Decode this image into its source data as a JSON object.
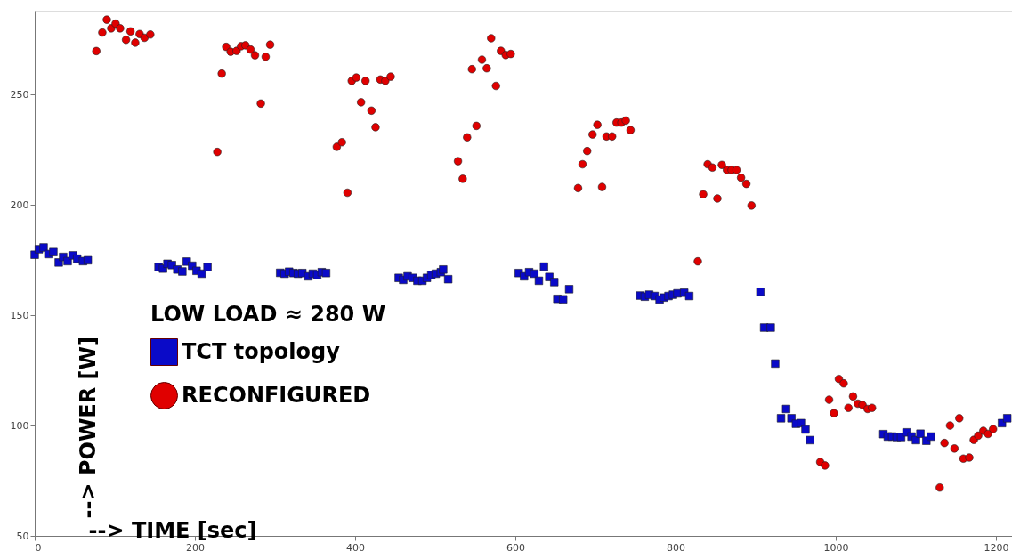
{
  "chart_data": {
    "type": "scatter",
    "xlabel": "--> TIME [sec]",
    "ylabel": "--> POWER [W]",
    "legend_title": "LOW LOAD ≈ 280 W",
    "xlim": [
      0,
      1220
    ],
    "ylim": [
      50,
      288
    ],
    "xticks": [
      0,
      200,
      400,
      600,
      800,
      1000,
      1200
    ],
    "yticks": [
      50,
      100,
      150,
      200,
      250
    ],
    "grid": false,
    "legend": "left",
    "series": [
      {
        "name": "TCT topology",
        "color": "#0a0ac8",
        "marker": "square",
        "x": [
          0,
          5.2,
          11.1,
          17.0,
          23.3,
          30.0,
          35.5,
          41.1,
          47.4,
          53.0,
          60.3,
          66.3,
          154.6,
          160.2,
          165.7,
          171.3,
          178.0,
          184.3,
          189.8,
          196.5,
          202.0,
          208.4,
          215.7,
          306.4,
          312.0,
          317.5,
          323.1,
          328.6,
          334.1,
          341.6,
          347.2,
          352.7,
          358.3,
          363.8,
          454.4,
          460.0,
          465.5,
          471.8,
          477.7,
          484.0,
          489.6,
          495.1,
          500.7,
          507.0,
          509.9,
          516.2,
          604.2,
          610.9,
          617.2,
          623.6,
          629.4,
          635.8,
          642.4,
          648.6,
          652.4,
          659.7,
          667.2,
          756.0,
          761.6,
          767.1,
          773.8,
          780.1,
          785.7,
          791.2,
          796.8,
          802.3,
          810.8,
          817.1,
          905.9,
          910.6,
          918.8,
          924.4,
          931.7,
          938.1,
          944.7,
          950.3,
          956.6,
          962.2,
          968.0,
          1059.4,
          1065.0,
          1070.5,
          1076.1,
          1081.6,
          1088.3,
          1094.6,
          1100.1,
          1105.7,
          1113.1,
          1118.7,
          1207.5,
          1214.1
        ],
        "values": [
          177.4,
          179.9,
          180.7,
          177.7,
          178.6,
          173.9,
          176.4,
          174.5,
          177.1,
          175.6,
          174.5,
          174.9,
          171.8,
          171.1,
          173.3,
          172.7,
          170.7,
          169.8,
          174.3,
          172.4,
          170.1,
          168.8,
          171.8,
          169.2,
          168.8,
          169.7,
          169.1,
          168.8,
          169.1,
          167.6,
          168.8,
          168.2,
          169.5,
          169.1,
          166.9,
          166.0,
          167.6,
          166.9,
          165.6,
          165.6,
          166.9,
          168.2,
          168.8,
          169.5,
          170.7,
          166.3,
          169.1,
          167.6,
          169.5,
          168.8,
          165.6,
          172.0,
          167.3,
          165.0,
          157.4,
          157.2,
          161.8,
          158.9,
          158.4,
          159.3,
          158.7,
          157.1,
          158.0,
          158.7,
          159.3,
          159.9,
          160.2,
          158.7,
          160.6,
          144.4,
          144.4,
          128.1,
          103.3,
          107.5,
          103.3,
          100.8,
          101.1,
          98.2,
          93.4,
          96.1,
          95.0,
          95.0,
          94.8,
          94.8,
          96.9,
          95.0,
          93.4,
          96.3,
          93.1,
          95.0,
          101.1,
          103.3
        ]
      },
      {
        "name": "RECONFIGURED",
        "color": "#e00000",
        "marker": "circle",
        "x": [
          76.9,
          84.4,
          90.0,
          95.5,
          101.0,
          106.6,
          114.0,
          119.6,
          125.5,
          131.0,
          137.0,
          144.3,
          227.9,
          233.5,
          239.0,
          244.6,
          252.0,
          257.6,
          263.1,
          269.4,
          275.0,
          282.3,
          288.3,
          293.9,
          377.1,
          383.5,
          390.4,
          395.8,
          401.5,
          407.4,
          413.0,
          420.4,
          425.5,
          431.5,
          437.7,
          444.4,
          528.4,
          534.3,
          539.8,
          545.8,
          551.4,
          558.3,
          564.3,
          569.8,
          575.8,
          582.0,
          588.0,
          594.3,
          678.3,
          683.9,
          689.7,
          696.4,
          702.4,
          708.3,
          713.8,
          720.8,
          726.4,
          732.4,
          737.9,
          743.8,
          827.8,
          834.5,
          840.1,
          846.0,
          852.2,
          857.8,
          864.1,
          870.0,
          876.2,
          881.8,
          888.4,
          894.8,
          980.6,
          986.6,
          991.7,
          997.7,
          1003.9,
          1009.9,
          1015.8,
          1021.6,
          1027.6,
          1033.5,
          1039.8,
          1045.3,
          1129.8,
          1135.7,
          1142.7,
          1148.2,
          1154.2,
          1159.3,
          1166.7,
          1172.3,
          1177.8,
          1184.2,
          1190.1,
          1196.4
        ],
        "values": [
          269.7,
          278.1,
          283.9,
          280.0,
          282.1,
          280.0,
          274.8,
          278.6,
          273.5,
          277.4,
          275.7,
          277.2,
          224.0,
          259.5,
          271.6,
          269.4,
          269.8,
          271.9,
          272.3,
          270.4,
          267.8,
          245.9,
          267.1,
          272.6,
          226.3,
          228.4,
          205.5,
          256.2,
          257.7,
          246.5,
          256.2,
          242.7,
          235.2,
          256.8,
          256.2,
          258.1,
          219.8,
          211.8,
          230.6,
          261.5,
          235.8,
          265.8,
          261.9,
          275.5,
          253.9,
          269.8,
          267.9,
          268.4,
          207.6,
          218.4,
          224.4,
          231.9,
          236.3,
          208.1,
          231.0,
          231.0,
          237.3,
          237.3,
          238.2,
          233.9,
          174.4,
          204.8,
          218.4,
          216.9,
          202.9,
          218.1,
          215.8,
          215.8,
          215.8,
          212.3,
          209.5,
          199.7,
          83.5,
          81.9,
          111.7,
          105.6,
          121.1,
          119.1,
          108.0,
          113.2,
          109.9,
          109.3,
          107.5,
          108.0,
          71.9,
          92.1,
          100.0,
          89.6,
          103.3,
          85.0,
          85.5,
          93.5,
          95.4,
          97.6,
          96.2,
          98.4
        ]
      }
    ]
  }
}
